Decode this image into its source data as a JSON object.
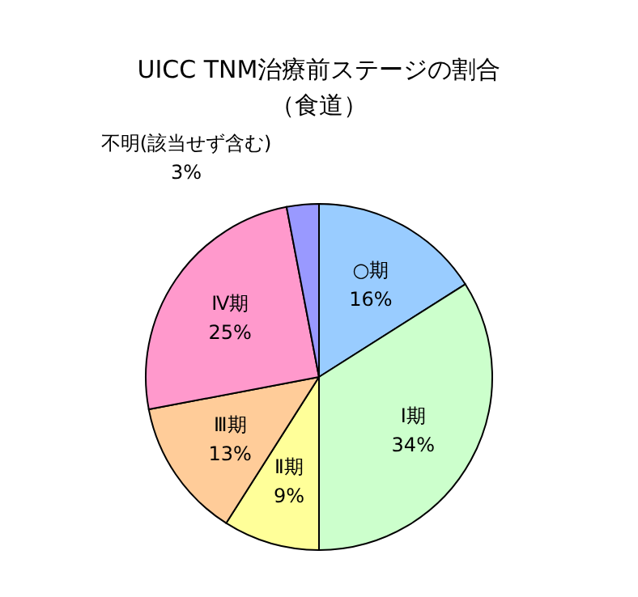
{
  "chart_data": {
    "type": "pie",
    "title": "UICC TNM治療前ステージの割合",
    "subtitle": "（食道）",
    "categories": [
      "○期",
      "Ⅰ期",
      "Ⅱ期",
      "Ⅲ期",
      "Ⅳ期",
      "不明(該当せず含む)"
    ],
    "values": [
      16,
      34,
      9,
      13,
      25,
      3
    ],
    "colors": [
      "#99ccff",
      "#ccffcc",
      "#ffff99",
      "#ffcc99",
      "#ff99cc",
      "#9999ff"
    ],
    "value_labels": [
      "16%",
      "34%",
      "9%",
      "13%",
      "25%",
      "3%"
    ],
    "legend": false
  }
}
